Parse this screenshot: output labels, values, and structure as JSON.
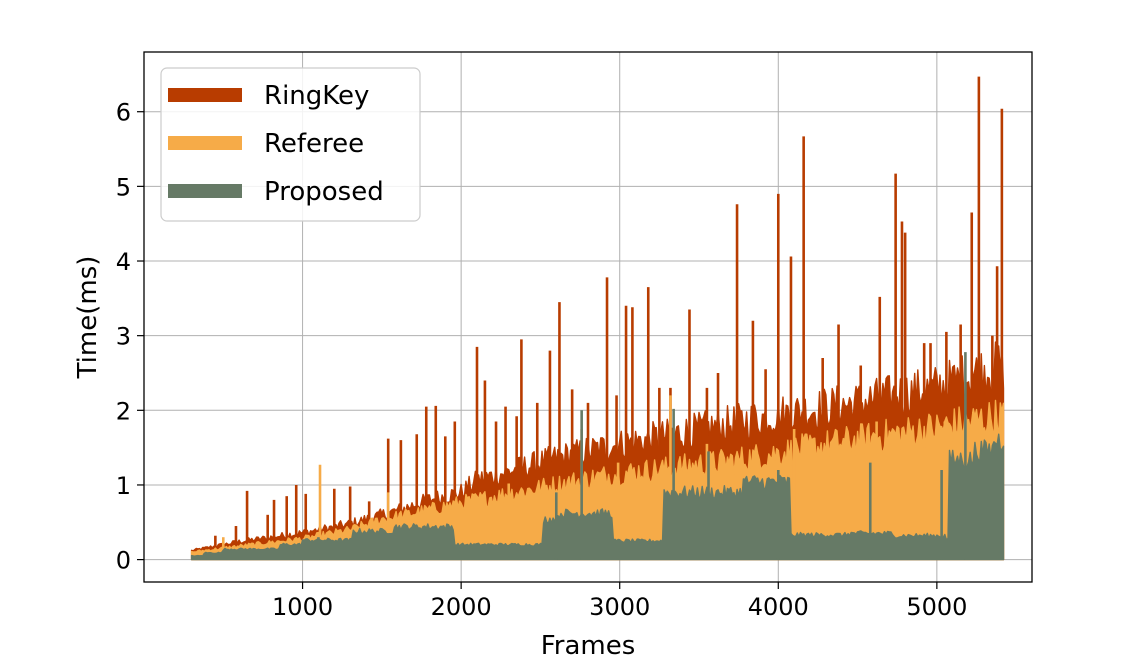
{
  "chart_data": {
    "type": "area",
    "title": "",
    "xlabel": "Frames",
    "ylabel": "Time(ms)",
    "xlim": [
      0,
      5600
    ],
    "ylim": [
      -0.3,
      6.8
    ],
    "xticks": [
      1000,
      2000,
      3000,
      4000,
      5000
    ],
    "xtick_labels": [
      "1000",
      "2000",
      "3000",
      "4000",
      "5000"
    ],
    "yticks": [
      0,
      1,
      2,
      3,
      4,
      5,
      6
    ],
    "ytick_labels": [
      "0",
      "1",
      "2",
      "3",
      "4",
      "5",
      "6"
    ],
    "grid": true,
    "legend_position": "top-left",
    "x_start": 300,
    "x_end": 5420,
    "series": [
      {
        "name": "RingKey",
        "color": "#b83c00",
        "baseline": [
          [
            300,
            0.12
          ],
          [
            600,
            0.24
          ],
          [
            1000,
            0.36
          ],
          [
            1300,
            0.48
          ],
          [
            1600,
            0.66
          ],
          [
            1800,
            0.8
          ],
          [
            2000,
            0.9
          ],
          [
            2100,
            1.06
          ],
          [
            2300,
            1.18
          ],
          [
            2600,
            1.36
          ],
          [
            2800,
            1.46
          ],
          [
            3000,
            1.54
          ],
          [
            3300,
            1.66
          ],
          [
            3600,
            1.78
          ],
          [
            4000,
            1.94
          ],
          [
            4500,
            2.1
          ],
          [
            5000,
            2.3
          ],
          [
            5250,
            2.5
          ],
          [
            5420,
            2.6
          ]
        ],
        "spikes": [
          [
            450,
            0.32
          ],
          [
            580,
            0.45
          ],
          [
            650,
            0.92
          ],
          [
            780,
            0.6
          ],
          [
            820,
            0.8
          ],
          [
            900,
            0.85
          ],
          [
            960,
            1.0
          ],
          [
            1020,
            0.88
          ],
          [
            1200,
            0.95
          ],
          [
            1300,
            0.98
          ],
          [
            1420,
            0.78
          ],
          [
            1540,
            1.62
          ],
          [
            1620,
            1.6
          ],
          [
            1720,
            1.68
          ],
          [
            1780,
            2.05
          ],
          [
            1840,
            2.06
          ],
          [
            1900,
            1.65
          ],
          [
            1960,
            1.85
          ],
          [
            2100,
            2.85
          ],
          [
            2150,
            2.4
          ],
          [
            2220,
            1.85
          ],
          [
            2280,
            2.05
          ],
          [
            2350,
            1.92
          ],
          [
            2380,
            2.95
          ],
          [
            2480,
            2.1
          ],
          [
            2560,
            2.8
          ],
          [
            2620,
            3.45
          ],
          [
            2700,
            2.28
          ],
          [
            2800,
            2.1
          ],
          [
            2920,
            3.78
          ],
          [
            2980,
            2.2
          ],
          [
            3040,
            3.4
          ],
          [
            3080,
            3.38
          ],
          [
            3180,
            3.65
          ],
          [
            3250,
            2.3
          ],
          [
            3320,
            2.3
          ],
          [
            3440,
            3.35
          ],
          [
            3550,
            2.3
          ],
          [
            3620,
            2.5
          ],
          [
            3740,
            4.76
          ],
          [
            3840,
            3.2
          ],
          [
            3920,
            2.55
          ],
          [
            4000,
            4.9
          ],
          [
            4080,
            4.06
          ],
          [
            4160,
            5.67
          ],
          [
            4280,
            2.7
          ],
          [
            4380,
            3.15
          ],
          [
            4520,
            2.6
          ],
          [
            4640,
            3.52
          ],
          [
            4740,
            5.17
          ],
          [
            4780,
            4.53
          ],
          [
            4800,
            4.38
          ],
          [
            4920,
            2.9
          ],
          [
            4960,
            2.9
          ],
          [
            5060,
            3.05
          ],
          [
            5150,
            3.15
          ],
          [
            5220,
            4.65
          ],
          [
            5265,
            6.47
          ],
          [
            5350,
            3.0
          ],
          [
            5380,
            3.93
          ],
          [
            5410,
            6.04
          ]
        ]
      },
      {
        "name": "Referee",
        "color": "#f6ab48",
        "baseline": [
          [
            300,
            0.1
          ],
          [
            600,
            0.18
          ],
          [
            1000,
            0.28
          ],
          [
            1300,
            0.4
          ],
          [
            1500,
            0.54
          ],
          [
            1700,
            0.62
          ],
          [
            2000,
            0.76
          ],
          [
            2300,
            0.88
          ],
          [
            2600,
            1.0
          ],
          [
            2950,
            1.14
          ],
          [
            3300,
            1.22
          ],
          [
            3700,
            1.32
          ],
          [
            4100,
            1.46
          ],
          [
            4500,
            1.6
          ],
          [
            5000,
            1.76
          ],
          [
            5250,
            1.86
          ],
          [
            5420,
            1.92
          ]
        ],
        "spikes": [
          [
            500,
            0.3
          ],
          [
            1110,
            1.27
          ],
          [
            1540,
            0.9
          ],
          [
            2300,
            1.02
          ],
          [
            2760,
            1.75
          ],
          [
            2990,
            1.3
          ],
          [
            3320,
            2.2
          ],
          [
            3550,
            1.55
          ],
          [
            4100,
            1.75
          ],
          [
            4620,
            1.85
          ],
          [
            5050,
            1.85
          ],
          [
            5230,
            1.98
          ]
        ]
      },
      {
        "name": "Proposed",
        "color": "#667a66",
        "steps": [
          [
            300,
            0.05
          ],
          [
            380,
            0.09
          ],
          [
            500,
            0.14
          ],
          [
            860,
            0.2
          ],
          [
            1000,
            0.26
          ],
          [
            1320,
            0.38
          ],
          [
            1580,
            0.44
          ],
          [
            1960,
            0.2
          ],
          [
            2520,
            0.54
          ],
          [
            2620,
            0.62
          ],
          [
            2960,
            0.25
          ],
          [
            3280,
            0.9
          ],
          [
            3780,
            1.04
          ],
          [
            4080,
            0.33
          ],
          [
            4440,
            0.35
          ],
          [
            4720,
            0.32
          ],
          [
            5060,
            0.28
          ],
          [
            5080,
            1.34
          ],
          [
            5240,
            1.46
          ],
          [
            5360,
            1.6
          ],
          [
            5420,
            1.6
          ]
        ],
        "spikes": [
          [
            1100,
            0.3
          ],
          [
            2600,
            0.9
          ],
          [
            2760,
            2.0
          ],
          [
            3340,
            2.02
          ],
          [
            3560,
            1.45
          ],
          [
            4000,
            1.2
          ],
          [
            4580,
            1.3
          ],
          [
            5030,
            1.2
          ],
          [
            5180,
            2.78
          ]
        ]
      }
    ]
  }
}
